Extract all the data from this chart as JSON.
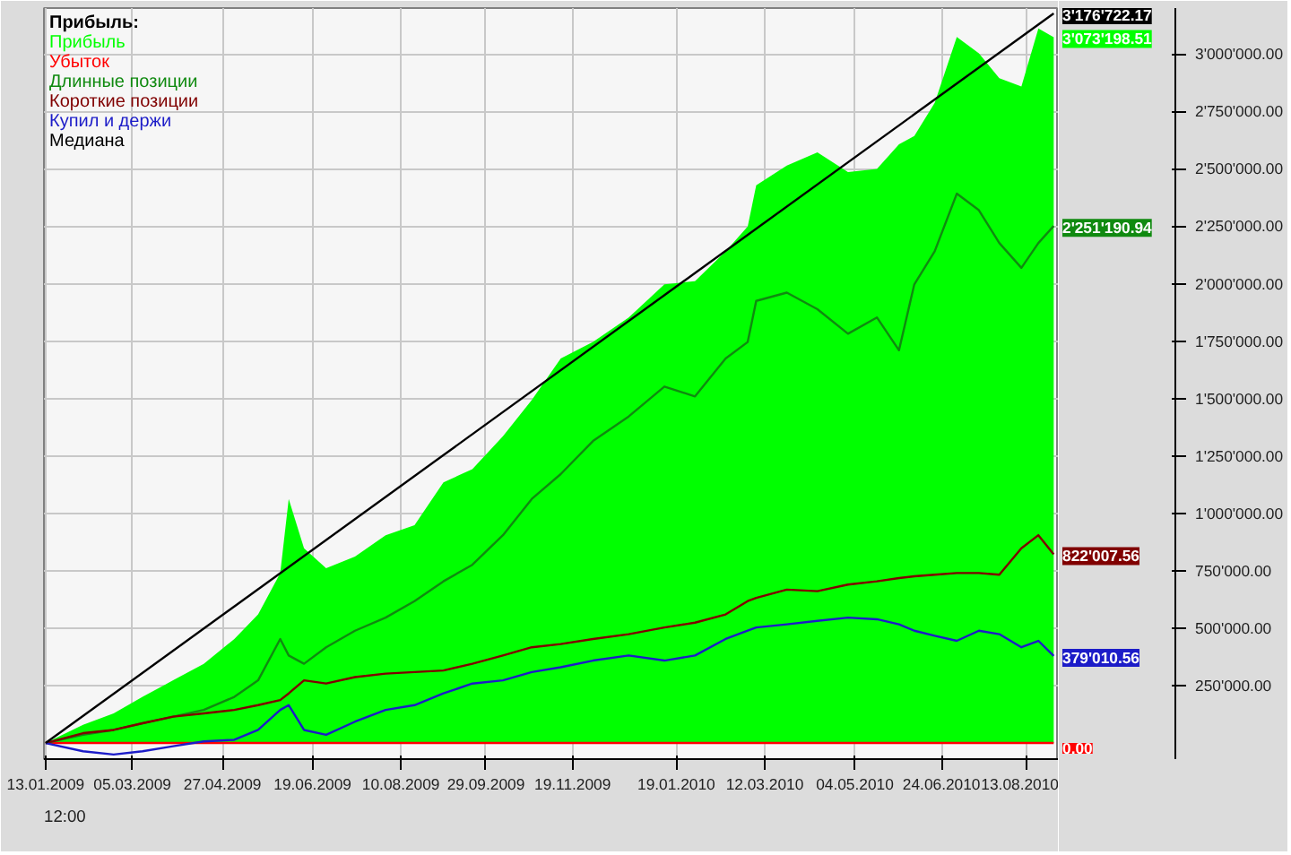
{
  "chart_data": {
    "type": "line",
    "legend_title": "Прибыль:",
    "legend": "top left",
    "grid": true,
    "x": [
      "2009-01-13",
      "2009-02-04",
      "2009-02-22",
      "2009-03-11",
      "2009-03-29",
      "2009-04-16",
      "2009-05-04",
      "2009-05-18",
      "2009-05-31",
      "2009-06-05",
      "2009-06-14",
      "2009-06-27",
      "2009-07-14",
      "2009-08-01",
      "2009-08-18",
      "2009-09-04",
      "2009-09-21",
      "2009-10-09",
      "2009-10-26",
      "2009-11-12",
      "2009-12-01",
      "2009-12-22",
      "2010-01-12",
      "2010-01-30",
      "2010-02-17",
      "2010-03-02",
      "2010-03-07",
      "2010-03-25",
      "2010-04-12",
      "2010-04-30",
      "2010-05-17",
      "2010-05-30",
      "2010-06-08",
      "2010-06-20",
      "2010-07-03",
      "2010-07-16",
      "2010-07-28",
      "2010-08-10",
      "2010-08-20",
      "2010-08-29"
    ],
    "xlim": [
      "2009-01-12",
      "2010-09-01"
    ],
    "xticks": [
      {
        "value": "2009-01-13",
        "label": "13.01.2009"
      },
      {
        "value": "2009-03-05",
        "label": "05.03.2009"
      },
      {
        "value": "2009-04-27",
        "label": "27.04.2009"
      },
      {
        "value": "2009-06-19",
        "label": "19.06.2009"
      },
      {
        "value": "2009-08-10",
        "label": "10.08.2009"
      },
      {
        "value": "2009-09-29",
        "label": "29.09.2009"
      },
      {
        "value": "2009-11-19",
        "label": "19.11.2009"
      },
      {
        "value": "2010-01-19",
        "label": "19.01.2010"
      },
      {
        "value": "2010-03-12",
        "label": "12.03.2010"
      },
      {
        "value": "2010-05-04",
        "label": "04.05.2010"
      },
      {
        "value": "2010-06-24",
        "label": "24.06.2010"
      },
      {
        "value": "2010-08-13",
        "label": "13.08.2010"
      }
    ],
    "ylim": [
      -70000,
      3200000
    ],
    "yticks": [
      {
        "value": 250000,
        "label": "250'000.00"
      },
      {
        "value": 500000,
        "label": "500'000.00"
      },
      {
        "value": 750000,
        "label": "750'000.00"
      },
      {
        "value": 1000000,
        "label": "1'000'000.00"
      },
      {
        "value": 1250000,
        "label": "1'250'000.00"
      },
      {
        "value": 1500000,
        "label": "1'500'000.00"
      },
      {
        "value": 1750000,
        "label": "1'750'000.00"
      },
      {
        "value": 2000000,
        "label": "2'000'000.00"
      },
      {
        "value": 2250000,
        "label": "2'250'000.00"
      },
      {
        "value": 2500000,
        "label": "2'500'000.00"
      },
      {
        "value": 2750000,
        "label": "2'750'000.00"
      },
      {
        "value": 3000000,
        "label": "3'000'000.00"
      }
    ],
    "annotations": [
      "12:00"
    ],
    "series": [
      {
        "name": "Прибыль",
        "type": "area",
        "color": "#00ff00",
        "values": [
          0,
          79000,
          129000,
          201000,
          273000,
          345000,
          453000,
          560000,
          740000,
          1063000,
          848000,
          761000,
          812000,
          905000,
          948000,
          1135000,
          1192000,
          1336000,
          1494000,
          1674000,
          1746000,
          1853000,
          1997000,
          2011000,
          2141000,
          2249000,
          2428000,
          2514000,
          2572000,
          2486000,
          2500000,
          2607000,
          2643000,
          2787000,
          3074000,
          3003000,
          2895000,
          2859000,
          3111000,
          3073198.51
        ],
        "value_labels": [
          null,
          null,
          null,
          null,
          null,
          null,
          null,
          null,
          null,
          null,
          null,
          null,
          null,
          null,
          null,
          null,
          null,
          null,
          null,
          null,
          null,
          null,
          null,
          null,
          null,
          null,
          null,
          null,
          null,
          null,
          null,
          null,
          null,
          null,
          null,
          null,
          null,
          null,
          null,
          "3'073'198.51"
        ]
      },
      {
        "name": "Убыток",
        "color": "#ff0000",
        "x": [
          "2009-01-13",
          "2010-08-29"
        ],
        "values": [
          0,
          0
        ],
        "value_labels": [
          null,
          "0.00"
        ]
      },
      {
        "name": "Длинные позиции",
        "color": "#108a10",
        "values": [
          0,
          36000,
          57000,
          86000,
          115000,
          144000,
          201000,
          273000,
          453000,
          381000,
          345000,
          417000,
          489000,
          546000,
          618000,
          704000,
          776000,
          905000,
          1063000,
          1171000,
          1315000,
          1422000,
          1552000,
          1509000,
          1674000,
          1746000,
          1925000,
          1961000,
          1889000,
          1782000,
          1853000,
          1710000,
          1997000,
          2141000,
          2392000,
          2320000,
          2177000,
          2069000,
          2177000,
          2251190.94
        ],
        "value_labels": [
          null,
          null,
          null,
          null,
          null,
          null,
          null,
          null,
          null,
          null,
          null,
          null,
          null,
          null,
          null,
          null,
          null,
          null,
          null,
          null,
          null,
          null,
          null,
          null,
          null,
          null,
          null,
          null,
          null,
          null,
          null,
          null,
          null,
          null,
          null,
          null,
          null,
          null,
          null,
          "2'251'190.94"
        ]
      },
      {
        "name": "Короткие позиции",
        "color": "#800000",
        "values": [
          0,
          43000,
          57000,
          86000,
          115000,
          129000,
          144000,
          165000,
          187000,
          216000,
          273000,
          259000,
          287000,
          302000,
          309000,
          316000,
          345000,
          381000,
          417000,
          431000,
          453000,
          474000,
          503000,
          524000,
          560000,
          618000,
          632000,
          668000,
          661000,
          690000,
          704000,
          718000,
          726000,
          733000,
          740000,
          740000,
          733000,
          848000,
          905000,
          822007.56
        ],
        "value_labels": [
          null,
          null,
          null,
          null,
          null,
          null,
          null,
          null,
          null,
          null,
          null,
          null,
          null,
          null,
          null,
          null,
          null,
          null,
          null,
          null,
          null,
          null,
          null,
          null,
          null,
          null,
          null,
          null,
          null,
          null,
          null,
          null,
          null,
          null,
          null,
          null,
          null,
          null,
          null,
          "822'007.56"
        ]
      },
      {
        "name": "Купил и держи",
        "color": "#1c1cc8",
        "values": [
          0,
          -36000,
          -50000,
          -36000,
          -14000,
          7000,
          14000,
          57000,
          144000,
          165000,
          57000,
          36000,
          93000,
          144000,
          165000,
          216000,
          259000,
          273000,
          309000,
          330000,
          359000,
          381000,
          359000,
          381000,
          453000,
          489000,
          503000,
          517000,
          532000,
          546000,
          539000,
          517000,
          489000,
          467000,
          445000,
          489000,
          474000,
          417000,
          445000,
          379010.56
        ],
        "value_labels": [
          null,
          null,
          null,
          null,
          null,
          null,
          null,
          null,
          null,
          null,
          null,
          null,
          null,
          null,
          null,
          null,
          null,
          null,
          null,
          null,
          null,
          null,
          null,
          null,
          null,
          null,
          null,
          null,
          null,
          null,
          null,
          null,
          null,
          null,
          null,
          null,
          null,
          null,
          null,
          "379'010.56"
        ]
      },
      {
        "name": "Медиана",
        "color": "#000000",
        "x": [
          "2009-01-13",
          "2010-08-29"
        ],
        "values": [
          0,
          3176722.17
        ],
        "value_labels": [
          null,
          "3'176'722.17"
        ]
      }
    ]
  }
}
